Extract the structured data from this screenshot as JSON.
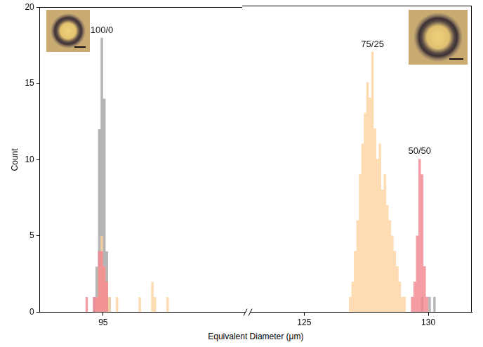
{
  "chart_data": {
    "type": "histogram",
    "x_label": "Equivalent Diameter (μm)",
    "y_label": "Count",
    "xlim": [
      [
        92.5,
        100.5
      ],
      [
        122.5,
        131.75
      ]
    ],
    "xticks": [
      [
        95
      ],
      [
        125,
        130
      ]
    ],
    "ylim": [
      0,
      20
    ],
    "yticks": [
      0,
      5,
      10,
      15,
      20
    ],
    "grid": false,
    "series": [
      {
        "name": "100/0",
        "color": "#a3a3a3",
        "bins": [
          94.6,
          94.7,
          94.8,
          94.9,
          95.0,
          95.1,
          95.2,
          95.3,
          129.7,
          129.8,
          129.9,
          130.0,
          130.1,
          130.2,
          130.3
        ],
        "values": [
          1,
          3,
          12,
          18,
          14,
          4,
          1,
          0,
          1,
          0,
          0,
          1,
          0,
          1
        ]
      },
      {
        "name": "75/25",
        "color": "#fcd3a0",
        "bins": [
          94.7,
          94.8,
          94.9,
          95.0,
          95.1,
          95.2,
          95.3,
          95.5,
          95.6,
          96.4,
          96.5,
          96.9,
          97.0,
          97.1,
          97.5,
          97.6,
          126.8,
          126.9,
          127.0,
          127.1,
          127.2,
          127.3,
          127.4,
          127.5,
          127.6,
          127.7,
          127.8,
          127.9,
          128.0,
          128.1,
          128.2,
          128.3,
          128.4,
          128.5,
          128.6,
          128.7,
          128.8,
          128.9,
          129.0,
          129.1
        ],
        "values": [
          1,
          3,
          5,
          3,
          2,
          1,
          0,
          1,
          0,
          1,
          0,
          2,
          1,
          0,
          1,
          0,
          1,
          2,
          4,
          6,
          9,
          11,
          13,
          15,
          14,
          17,
          12,
          10,
          11,
          8,
          9,
          7,
          6,
          5,
          4,
          3,
          2,
          1,
          1
        ]
      },
      {
        "name": "50/50",
        "color": "#f2848e",
        "bins": [
          94.3,
          94.4,
          94.6,
          94.7,
          94.8,
          94.9,
          95.0,
          95.1,
          95.2,
          129.3,
          129.4,
          129.5,
          129.6,
          129.7,
          129.8,
          129.9,
          130.0
        ],
        "values": [
          1,
          0,
          1,
          1,
          4,
          4,
          3,
          2,
          0,
          1,
          2,
          5,
          10,
          9,
          3,
          1
        ]
      }
    ]
  }
}
